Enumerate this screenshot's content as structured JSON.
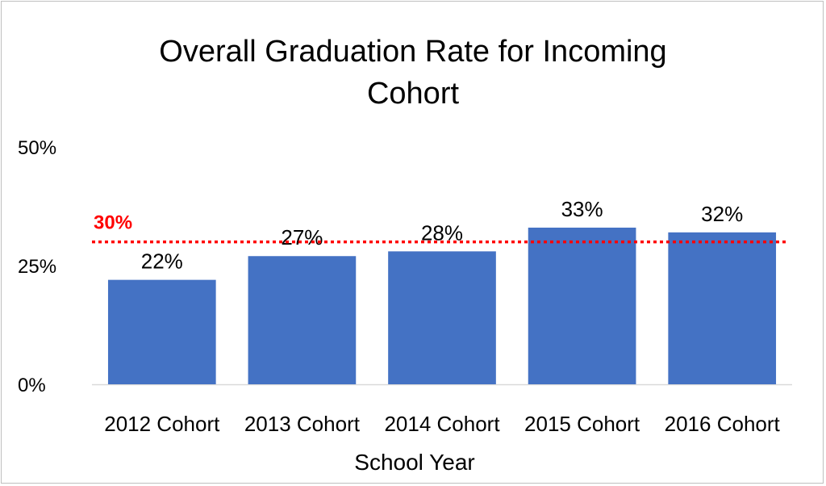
{
  "chart_data": {
    "type": "bar",
    "title": "Overall Graduation Rate for Incoming Cohort",
    "title_lines": [
      "Overall Graduation Rate for Incoming",
      "Cohort"
    ],
    "xlabel": "School Year",
    "ylabel": "",
    "categories": [
      "2012 Cohort",
      "2013 Cohort",
      "2014 Cohort",
      "2015 Cohort",
      "2016 Cohort"
    ],
    "values": [
      22,
      27,
      28,
      33,
      32
    ],
    "value_labels": [
      "22%",
      "27%",
      "28%",
      "33%",
      "32%"
    ],
    "ylim": [
      0,
      50
    ],
    "yticks": [
      0,
      25,
      50
    ],
    "ytick_labels": [
      "0%",
      "25%",
      "50%"
    ],
    "grid": false,
    "reference_line": {
      "value": 30,
      "label": "30%",
      "color": "#ff0000",
      "style": "dotted"
    },
    "bar_color": "#4472c4"
  }
}
